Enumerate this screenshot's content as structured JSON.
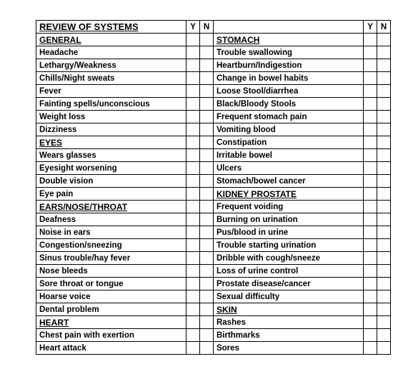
{
  "title": "REVIEW OF SYSTEMS",
  "yn_headers": [
    "Y",
    "N"
  ],
  "colors": {
    "border": "#000000",
    "background": "#ffffff",
    "text": "#000000"
  },
  "rows": [
    {
      "left": {
        "text": "REVIEW OF SYSTEMS",
        "style": "main-title"
      },
      "right": {
        "text": "",
        "style": ""
      },
      "header": true
    },
    {
      "left": {
        "text": "GENERAL",
        "style": "section"
      },
      "right": {
        "text": "STOMACH",
        "style": "section"
      }
    },
    {
      "left": {
        "text": "Headache",
        "style": "item"
      },
      "right": {
        "text": "Trouble swallowing",
        "style": "item"
      }
    },
    {
      "left": {
        "text": "Lethargy/Weakness",
        "style": "item"
      },
      "right": {
        "text": "Heartburn/Indigestion",
        "style": "item"
      }
    },
    {
      "left": {
        "text": "Chills/Night sweats",
        "style": "item"
      },
      "right": {
        "text": "Change in bowel habits",
        "style": "item"
      }
    },
    {
      "left": {
        "text": "Fever",
        "style": "item"
      },
      "right": {
        "text": "Loose Stool/diarrhea",
        "style": "item"
      }
    },
    {
      "left": {
        "text": "Fainting spells/unconscious",
        "style": "item"
      },
      "right": {
        "text": "Black/Bloody Stools",
        "style": "item"
      }
    },
    {
      "left": {
        "text": "Weight loss",
        "style": "item"
      },
      "right": {
        "text": "Frequent stomach pain",
        "style": "item"
      }
    },
    {
      "left": {
        "text": "Dizziness",
        "style": "item"
      },
      "right": {
        "text": "Vomiting blood",
        "style": "item"
      }
    },
    {
      "left": {
        "text": "EYES",
        "style": "section"
      },
      "right": {
        "text": "Constipation",
        "style": "item"
      }
    },
    {
      "left": {
        "text": "Wears glasses",
        "style": "item"
      },
      "right": {
        "text": "Irritable bowel",
        "style": "item"
      }
    },
    {
      "left": {
        "text": "Eyesight worsening",
        "style": "item"
      },
      "right": {
        "text": "Ulcers",
        "style": "item"
      }
    },
    {
      "left": {
        "text": "Double vision",
        "style": "item"
      },
      "right": {
        "text": "Stomach/bowel cancer",
        "style": "item"
      }
    },
    {
      "left": {
        "text": "Eye pain",
        "style": "item"
      },
      "right": {
        "text": "KIDNEY PROSTATE",
        "style": "section"
      }
    },
    {
      "left": {
        "text": "EARS/NOSE/THROAT",
        "style": "section"
      },
      "right": {
        "text": "Frequent voiding",
        "style": "item"
      }
    },
    {
      "left": {
        "text": "Deafness",
        "style": "item"
      },
      "right": {
        "text": "Burning on urination",
        "style": "item"
      }
    },
    {
      "left": {
        "text": "Noise in ears",
        "style": "item"
      },
      "right": {
        "text": "Pus/blood in urine",
        "style": "item"
      }
    },
    {
      "left": {
        "text": "Congestion/sneezing",
        "style": "item"
      },
      "right": {
        "text": "Trouble starting urination",
        "style": "item"
      }
    },
    {
      "left": {
        "text": "Sinus trouble/hay fever",
        "style": "item"
      },
      "right": {
        "text": "Dribble with cough/sneeze",
        "style": "item"
      }
    },
    {
      "left": {
        "text": "Nose bleeds",
        "style": "item"
      },
      "right": {
        "text": "Loss of urine control",
        "style": "item"
      }
    },
    {
      "left": {
        "text": "Sore throat or tongue",
        "style": "item"
      },
      "right": {
        "text": "Prostate disease/cancer",
        "style": "item"
      }
    },
    {
      "left": {
        "text": "Hoarse voice",
        "style": "item"
      },
      "right": {
        "text": "Sexual difficulty",
        "style": "item"
      }
    },
    {
      "left": {
        "text": "Dental problem",
        "style": "item"
      },
      "right": {
        "text": "SKIN",
        "style": "section"
      }
    },
    {
      "left": {
        "text": "HEART",
        "style": "section"
      },
      "right": {
        "text": "Rashes",
        "style": "item"
      }
    },
    {
      "left": {
        "text": "Chest pain with exertion",
        "style": "item"
      },
      "right": {
        "text": "Birthmarks",
        "style": "item"
      }
    },
    {
      "left": {
        "text": "Heart attack",
        "style": "item"
      },
      "right": {
        "text": "Sores",
        "style": "item"
      }
    }
  ]
}
